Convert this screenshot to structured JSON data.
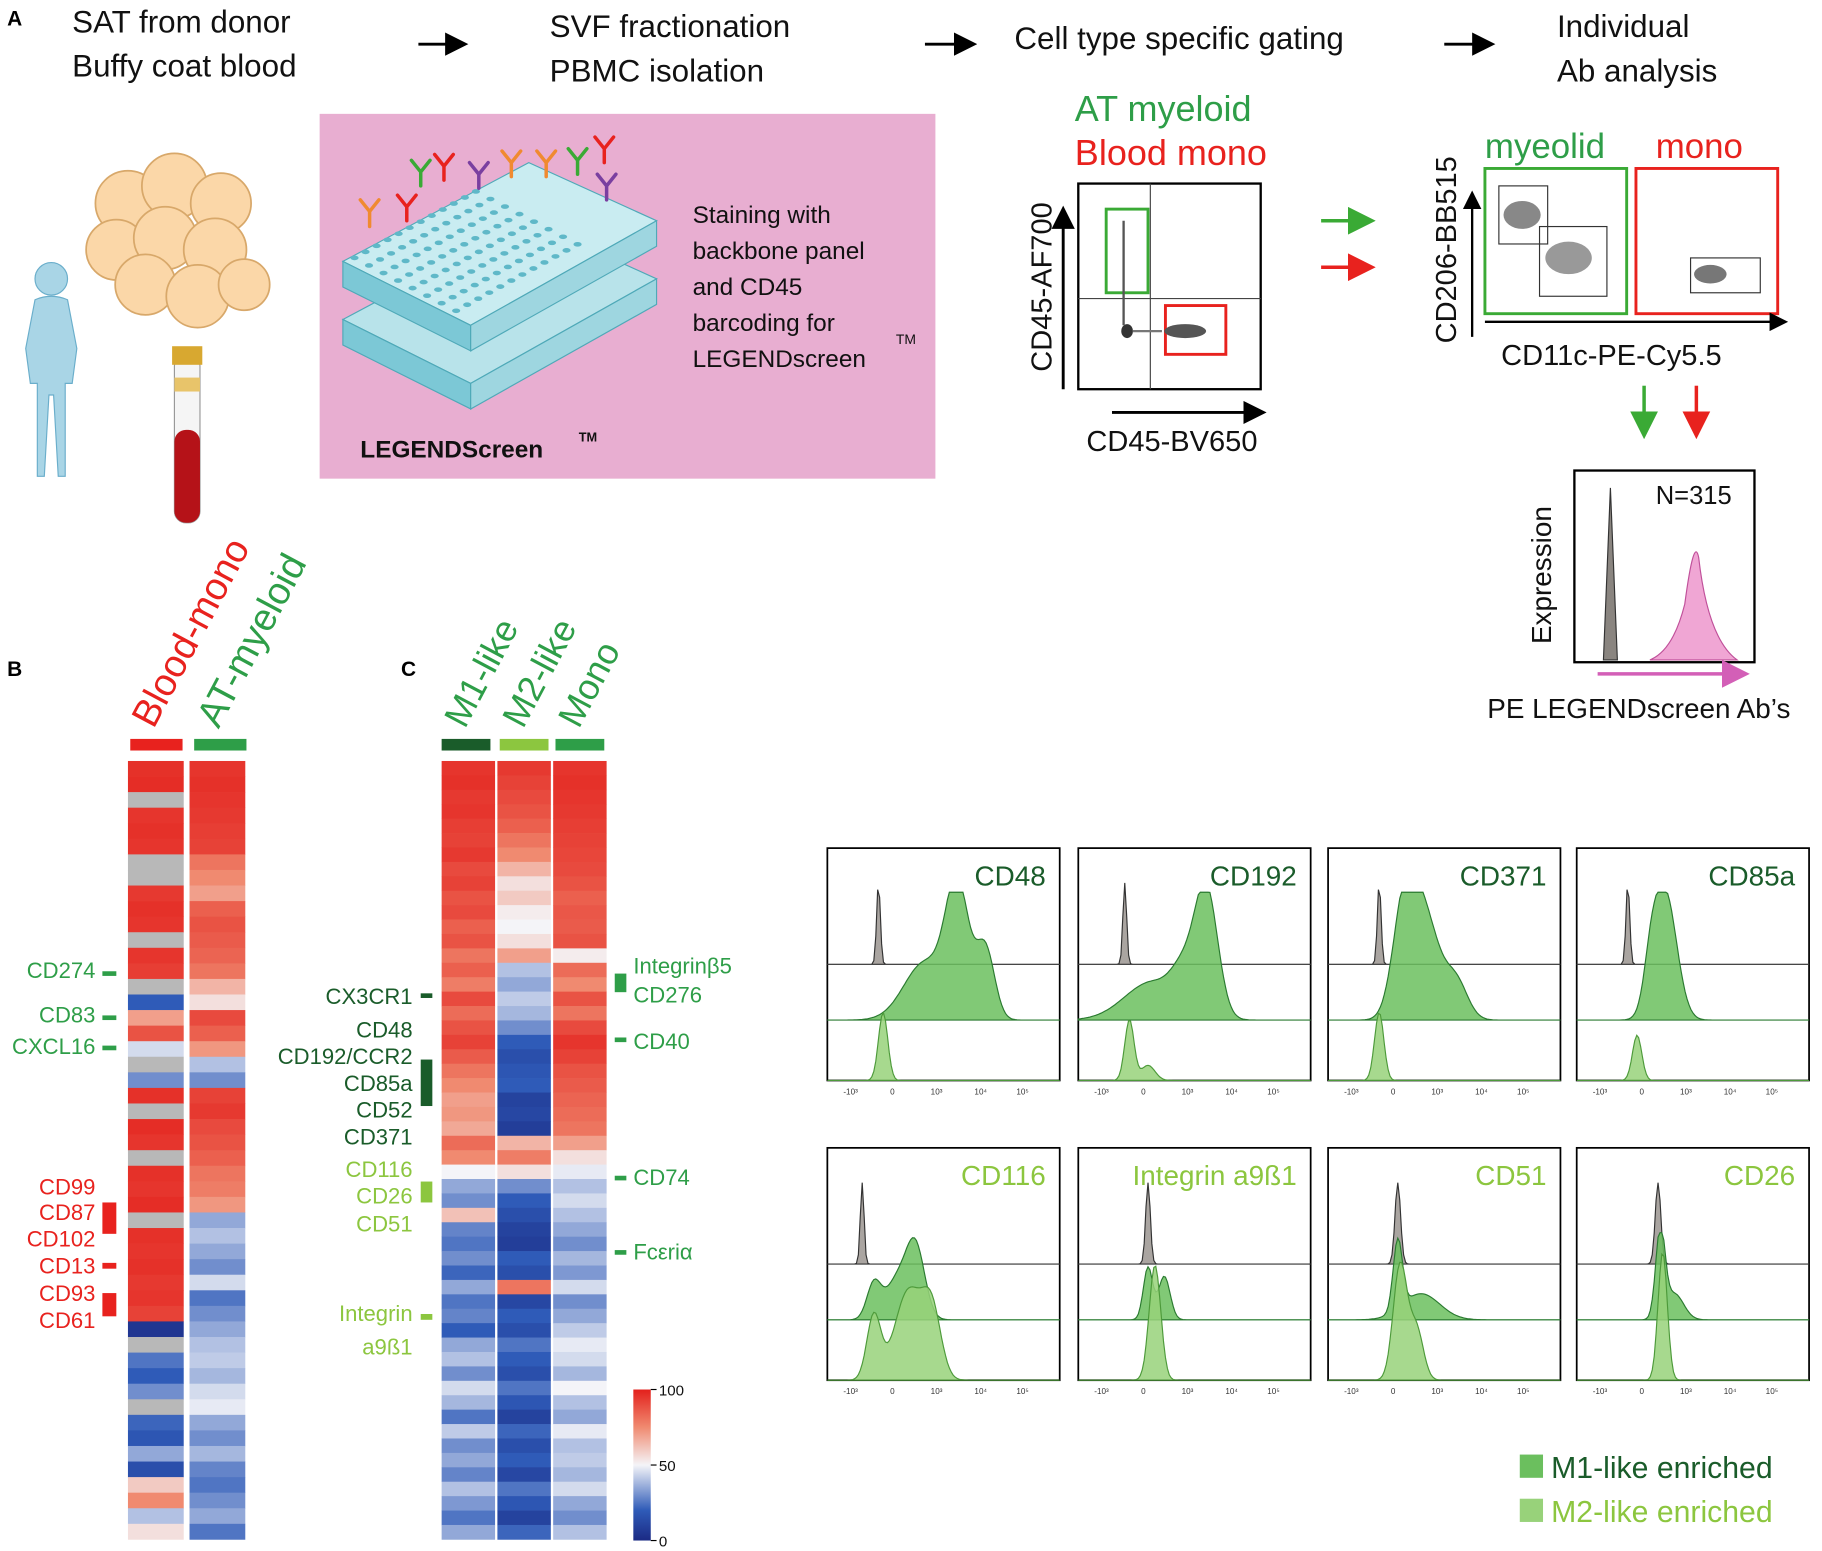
{
  "panel_labels": [
    "A",
    "B",
    "C"
  ],
  "workflow": {
    "steps": [
      [
        "SAT from donor",
        "Buffy coat blood"
      ],
      [
        "SVF fractionation",
        "PBMC  isolation"
      ],
      [
        "Cell type specific gating"
      ],
      [
        "Individual",
        "Ab analysis"
      ]
    ]
  },
  "staining": {
    "lines": [
      "Staining with",
      "backbone panel",
      "and CD45",
      "barcoding for",
      "LEGENDscreen"
    ],
    "tm": "TM",
    "product": "LEGENDScreen",
    "product_tm": "TM"
  },
  "gating": {
    "populations": [
      "AT myeloid",
      "Blood mono"
    ],
    "y_axis": "CD45-AF700",
    "x_axis": "CD45-BV650",
    "gates": [
      "myeolid",
      "mono"
    ],
    "y_axis_2": "CD206-BB515",
    "x_axis_2": "CD11c-PE-Cy5.5",
    "hist_y": "Expression",
    "n": "N=315",
    "hist_x": "PE LEGENDscreen Ab’s"
  },
  "heatmap_b": {
    "columns": [
      "Blood-mono",
      "AT-myeloid"
    ],
    "rows": [
      [
        96,
        95
      ],
      [
        97,
        96
      ],
      [
        null,
        95
      ],
      [
        95,
        94
      ],
      [
        96,
        93
      ],
      [
        95,
        92
      ],
      [
        null,
        80
      ],
      [
        null,
        75
      ],
      [
        94,
        70
      ],
      [
        96,
        85
      ],
      [
        95,
        88
      ],
      [
        null,
        86
      ],
      [
        95,
        84
      ],
      [
        93,
        80
      ],
      [
        null,
        65
      ],
      [
        20,
        55
      ],
      [
        70,
        90
      ],
      [
        88,
        85
      ],
      [
        45,
        72
      ],
      [
        null,
        40
      ],
      [
        30,
        30
      ],
      [
        96,
        92
      ],
      [
        null,
        94
      ],
      [
        97,
        90
      ],
      [
        95,
        88
      ],
      [
        null,
        85
      ],
      [
        96,
        80
      ],
      [
        95,
        78
      ],
      [
        97,
        72
      ],
      [
        null,
        35
      ],
      [
        96,
        40
      ],
      [
        95,
        35
      ],
      [
        96,
        30
      ],
      [
        94,
        45
      ],
      [
        95,
        25
      ],
      [
        92,
        30
      ],
      [
        5,
        35
      ],
      [
        null,
        40
      ],
      [
        25,
        42
      ],
      [
        20,
        38
      ],
      [
        30,
        45
      ],
      [
        null,
        48
      ],
      [
        22,
        35
      ],
      [
        18,
        30
      ],
      [
        35,
        38
      ],
      [
        15,
        28
      ],
      [
        60,
        25
      ],
      [
        75,
        30
      ],
      [
        40,
        35
      ],
      [
        55,
        25
      ]
    ],
    "labels_green": [
      "CD274",
      "CD83",
      "CXCL16"
    ],
    "labels_red": [
      "CD99",
      "CD87",
      "CD102",
      "CD13",
      "CD93",
      "CD61"
    ]
  },
  "heatmap_c": {
    "columns": [
      "M1-like",
      "M2-like",
      "Mono"
    ],
    "rows": [
      [
        95,
        94,
        95
      ],
      [
        96,
        92,
        96
      ],
      [
        94,
        90,
        95
      ],
      [
        95,
        88,
        94
      ],
      [
        93,
        85,
        93
      ],
      [
        92,
        80,
        92
      ],
      [
        94,
        75,
        91
      ],
      [
        90,
        65,
        90
      ],
      [
        92,
        55,
        88
      ],
      [
        88,
        60,
        85
      ],
      [
        90,
        52,
        87
      ],
      [
        85,
        50,
        86
      ],
      [
        88,
        55,
        88
      ],
      [
        80,
        70,
        52
      ],
      [
        85,
        40,
        82
      ],
      [
        78,
        35,
        75
      ],
      [
        90,
        42,
        88
      ],
      [
        82,
        38,
        80
      ],
      [
        88,
        30,
        90
      ],
      [
        92,
        20,
        95
      ],
      [
        86,
        15,
        92
      ],
      [
        80,
        18,
        88
      ],
      [
        75,
        20,
        86
      ],
      [
        70,
        10,
        84
      ],
      [
        72,
        12,
        82
      ],
      [
        68,
        8,
        80
      ],
      [
        82,
        65,
        70
      ],
      [
        75,
        78,
        55
      ],
      [
        50,
        55,
        48
      ],
      [
        35,
        30,
        40
      ],
      [
        30,
        20,
        45
      ],
      [
        62,
        15,
        40
      ],
      [
        28,
        10,
        35
      ],
      [
        25,
        8,
        30
      ],
      [
        30,
        20,
        38
      ],
      [
        22,
        15,
        32
      ],
      [
        35,
        80,
        45
      ],
      [
        25,
        12,
        30
      ],
      [
        28,
        20,
        35
      ],
      [
        20,
        15,
        42
      ],
      [
        35,
        25,
        48
      ],
      [
        40,
        20,
        45
      ],
      [
        30,
        15,
        38
      ],
      [
        45,
        25,
        50
      ],
      [
        38,
        18,
        40
      ],
      [
        25,
        10,
        35
      ],
      [
        42,
        22,
        48
      ],
      [
        30,
        15,
        40
      ],
      [
        35,
        20,
        42
      ],
      [
        28,
        12,
        38
      ],
      [
        40,
        25,
        45
      ],
      [
        32,
        18,
        35
      ],
      [
        25,
        10,
        30
      ],
      [
        35,
        22,
        40
      ]
    ],
    "labels_m1": [
      "CX3CR1",
      "CD48",
      "CD192/CCR2",
      "CD85a",
      "CD52",
      "CD371"
    ],
    "labels_m2": [
      "CD116",
      "CD26",
      "CD51",
      "Integrin",
      "a9ß1"
    ],
    "labels_right": [
      "Integrinβ5",
      "CD276",
      "CD40",
      "CD74",
      "Fcεriα"
    ]
  },
  "colorbar": {
    "lim": [
      0,
      100
    ],
    "ticks": [
      0,
      50,
      100
    ]
  },
  "histograms": {
    "m1_panels": [
      "CD48",
      "CD192",
      "CD371",
      "CD85a"
    ],
    "m2_panels": [
      "CD116",
      "Integrin a9ß1",
      "CD51",
      "CD26"
    ],
    "tick_labels": [
      "-10³",
      "0",
      "10³",
      "10⁴",
      "10⁵"
    ]
  },
  "legend": [
    "M1-like enriched",
    "M2-like enriched"
  ]
}
